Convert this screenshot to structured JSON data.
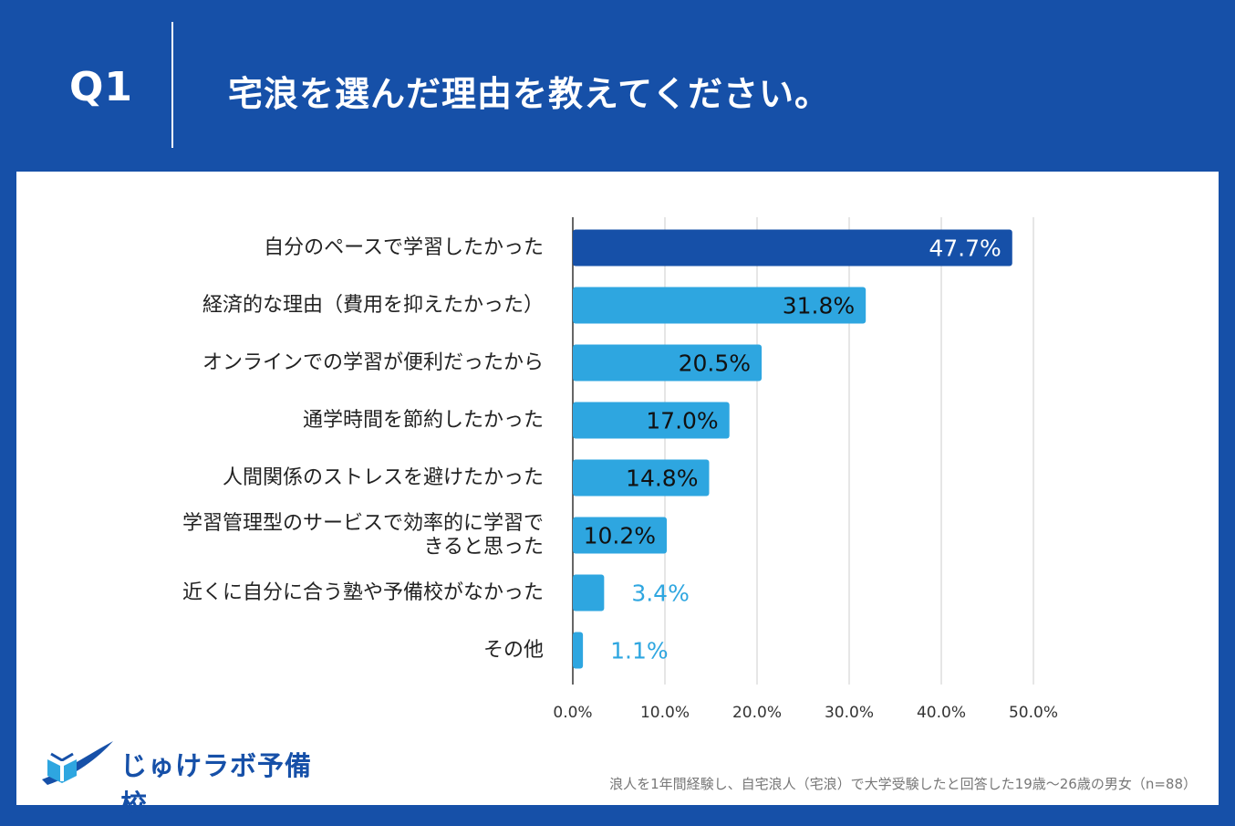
{
  "header": {
    "question_number": "Q1",
    "question_text": "宅浪を選んだ理由を教えてください。"
  },
  "colors": {
    "background": "#1650A8",
    "panel": "#ffffff",
    "bar_top": "#1650A8",
    "bar_other": "#2EA6E0",
    "label_inside_top": "#ffffff",
    "label_inside_other": "#111111",
    "label_outside": "#2EA6E0"
  },
  "chart_data": {
    "type": "bar",
    "orientation": "horizontal",
    "categories": [
      "自分のペースで学習したかった",
      "経済的な理由（費用を抑えたかった）",
      "オンラインでの学習が便利だったから",
      "通学時間を節約したかった",
      "人間関係のストレスを避けたかった",
      "学習管理型のサービスで効率的に学習できると思った",
      "近くに自分に合う塾や予備校がなかった",
      "その他"
    ],
    "values": [
      47.7,
      31.8,
      20.5,
      17.0,
      14.8,
      10.2,
      3.4,
      1.1
    ],
    "value_labels": [
      "47.7%",
      "31.8%",
      "20.5%",
      "17.0%",
      "14.8%",
      "10.2%",
      "3.4%",
      "1.1%"
    ],
    "xlim": [
      0,
      50
    ],
    "xticks": [
      "0.0%",
      "10.0%",
      "20.0%",
      "30.0%",
      "40.0%",
      "50.0%"
    ],
    "grid": true,
    "title": "",
    "xlabel": "",
    "ylabel": ""
  },
  "category_label_lines": [
    [
      "自分のペースで学習したかった"
    ],
    [
      "経済的な理由（費用を抑えたかった）"
    ],
    [
      "オンラインでの学習が便利だったから"
    ],
    [
      "通学時間を節約したかった"
    ],
    [
      "人間関係のストレスを避けたかった"
    ],
    [
      "学習管理型のサービスで効率的に学習で",
      "きると思った"
    ],
    [
      "近くに自分に合う塾や予備校がなかった"
    ],
    [
      "その他"
    ]
  ],
  "logo": {
    "text": "じゅけラボ予備校",
    "icon": "open-book-swoosh-icon"
  },
  "footnote": "浪人を1年間経験し、自宅浪人（宅浪）で大学受験したと回答した19歳～26歳の男女（n=88）"
}
